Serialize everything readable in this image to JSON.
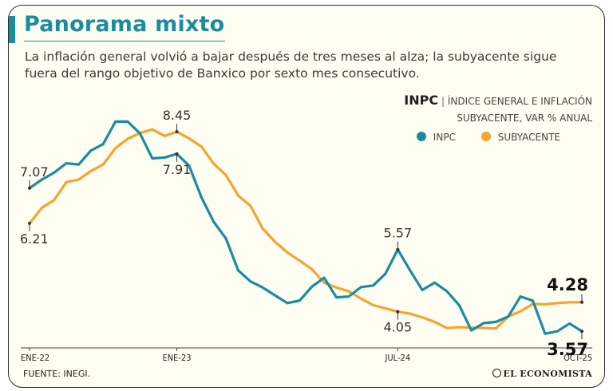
{
  "header": {
    "title": "Panorama mixto",
    "subtitle": "La inflación general volvió a bajar después de tres meses al alza; la subyacente sigue fuera del rango objetivo de Banxico por sexto mes consecutivo."
  },
  "legend": {
    "bold": "INPC",
    "separator": "|",
    "desc_line1": "ÍNDICE GENERAL E INFLACIÓN",
    "desc_line2": "SUBYACENTE, VAR % ANUAL",
    "inpc_label": "INPC",
    "sub_label": "SUBYACENTE"
  },
  "footer": {
    "source": "FUENTE: INEGI.",
    "brand": "EL ECONOMISTA"
  },
  "colors": {
    "inpc": "#1b8ca0",
    "sub": "#f4a431",
    "axis": "#444444",
    "text": "#333333"
  },
  "chart_data": {
    "type": "line",
    "title": "INPC | Índice general e inflación subyacente, var % anual",
    "xlabel": "",
    "ylabel": "Var % anual",
    "ylim": [
      3.3,
      9.0
    ],
    "x_ticks": [
      "ENE-22",
      "ENE-23",
      "JUL-24",
      "OCT-25"
    ],
    "categories": [
      "ENE-22",
      "FEB-22",
      "MAR-22",
      "ABR-22",
      "MAY-22",
      "JUN-22",
      "JUL-22",
      "AGO-22",
      "SEP-22",
      "OCT-22",
      "NOV-22",
      "DIC-22",
      "ENE-23",
      "FEB-23",
      "MAR-23",
      "ABR-23",
      "MAY-23",
      "JUN-23",
      "JUL-23",
      "AGO-23",
      "SEP-23",
      "OCT-23",
      "NOV-23",
      "DIC-23",
      "ENE-24",
      "FEB-24",
      "MAR-24",
      "ABR-24",
      "MAY-24",
      "JUN-24",
      "JUL-24",
      "AGO-24",
      "SEP-24",
      "OCT-24",
      "NOV-24",
      "DIC-24",
      "ENE-25",
      "FEB-25",
      "MAR-25",
      "ABR-25",
      "MAY-25",
      "JUN-25",
      "JUL-25",
      "AGO-25",
      "SEP-25",
      "OCT-25"
    ],
    "series": [
      {
        "name": "INPC",
        "values": [
          7.07,
          7.28,
          7.45,
          7.68,
          7.65,
          7.99,
          8.15,
          8.7,
          8.7,
          8.41,
          7.8,
          7.82,
          7.91,
          7.62,
          6.85,
          6.25,
          5.84,
          5.06,
          4.79,
          4.64,
          4.45,
          4.26,
          4.32,
          4.66,
          4.88,
          4.4,
          4.42,
          4.65,
          4.69,
          4.98,
          5.57,
          5.06,
          4.58,
          4.76,
          4.55,
          4.21,
          3.59,
          3.77,
          3.8,
          3.93,
          4.42,
          4.32,
          3.51,
          3.57,
          3.76,
          3.57
        ]
      },
      {
        "name": "SUBYACENTE",
        "values": [
          6.21,
          6.59,
          6.78,
          7.22,
          7.28,
          7.49,
          7.65,
          8.05,
          8.28,
          8.42,
          8.51,
          8.35,
          8.45,
          8.29,
          8.09,
          7.67,
          7.39,
          6.89,
          6.64,
          6.08,
          5.76,
          5.5,
          5.3,
          5.09,
          4.76,
          4.64,
          4.55,
          4.37,
          4.21,
          4.13,
          4.05,
          4.0,
          3.91,
          3.8,
          3.65,
          3.67,
          3.66,
          3.65,
          3.64,
          3.93,
          4.06,
          4.24,
          4.23,
          4.26,
          4.28,
          4.28
        ]
      }
    ],
    "annotations": [
      {
        "series": "INPC",
        "index": 0,
        "text": "7.07",
        "position": "above"
      },
      {
        "series": "SUBYACENTE",
        "index": 0,
        "text": "6.21",
        "position": "below"
      },
      {
        "series": "SUBYACENTE",
        "index": 12,
        "text": "8.45",
        "position": "above"
      },
      {
        "series": "INPC",
        "index": 12,
        "text": "7.91",
        "position": "below"
      },
      {
        "series": "INPC",
        "index": 30,
        "text": "5.57",
        "position": "above"
      },
      {
        "series": "SUBYACENTE",
        "index": 30,
        "text": "4.05",
        "position": "below"
      },
      {
        "series": "SUBYACENTE",
        "index": 45,
        "text": "4.28",
        "position": "above",
        "emphasis": true
      },
      {
        "series": "INPC",
        "index": 45,
        "text": "3.57",
        "position": "below",
        "emphasis": true
      }
    ]
  }
}
